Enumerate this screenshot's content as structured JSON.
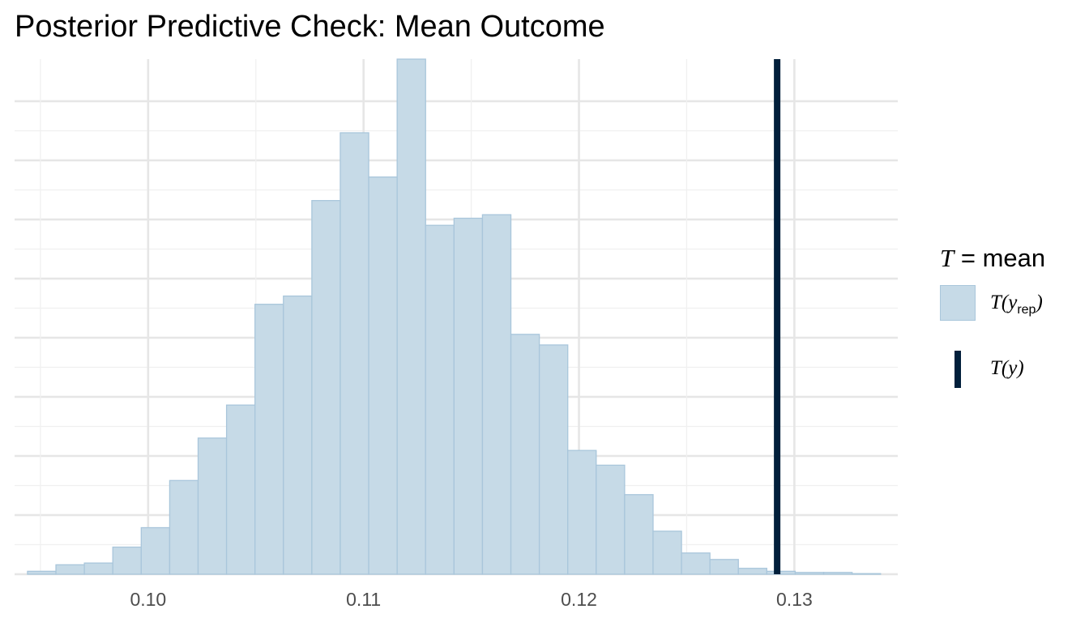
{
  "chart_data": {
    "type": "bar",
    "title": "Posterior Predictive Check: Mean Outcome",
    "xlabel": "",
    "ylabel": "",
    "xlim": [
      0.0938,
      0.1348
    ],
    "ylim": [
      0,
      874
    ],
    "x_ticks": [
      0.1,
      0.11,
      0.12,
      0.13
    ],
    "x_tick_labels": [
      "0.10",
      "0.11",
      "0.12",
      "0.13"
    ],
    "y_tick_labels": [],
    "grid": true,
    "bin_width": 0.00132,
    "bin_starts": [
      0.0944,
      0.09572,
      0.09704,
      0.09836,
      0.09968,
      0.101,
      0.10232,
      0.10364,
      0.10496,
      0.10628,
      0.1076,
      0.10892,
      0.11024,
      0.11156,
      0.11288,
      0.1142,
      0.11552,
      0.11684,
      0.11816,
      0.11948,
      0.1208,
      0.12212,
      0.12344,
      0.12476,
      0.12608,
      0.1274,
      0.12872,
      0.13004,
      0.13136,
      0.13268
    ],
    "series": [
      {
        "name": "T(y_rep)",
        "values": [
          5,
          16,
          19,
          46,
          79,
          159,
          231,
          287,
          458,
          472,
          634,
          749,
          674,
          900,
          592,
          604,
          610,
          407,
          389,
          210,
          185,
          135,
          73,
          36,
          25,
          10,
          5,
          3,
          3,
          1
        ]
      }
    ],
    "observed_T": 0.1292,
    "legend": {
      "position": "right",
      "title_var": "T",
      "title_rest": "= mean",
      "items": [
        {
          "label": "T(y",
          "sub": "rep",
          "close": ")",
          "color": "#c6dae7",
          "stroke": "#a9c6db"
        },
        {
          "label": "T(y)",
          "color": "#011f3b"
        }
      ]
    },
    "colors": {
      "bar_fill": "#c6dae7",
      "bar_stroke": "#a9c6db",
      "observed_line": "#011f3b",
      "grid_major": "#e6e6e6",
      "grid_minor": "#f0f0f0",
      "tick_text": "#4d4d4d"
    }
  }
}
